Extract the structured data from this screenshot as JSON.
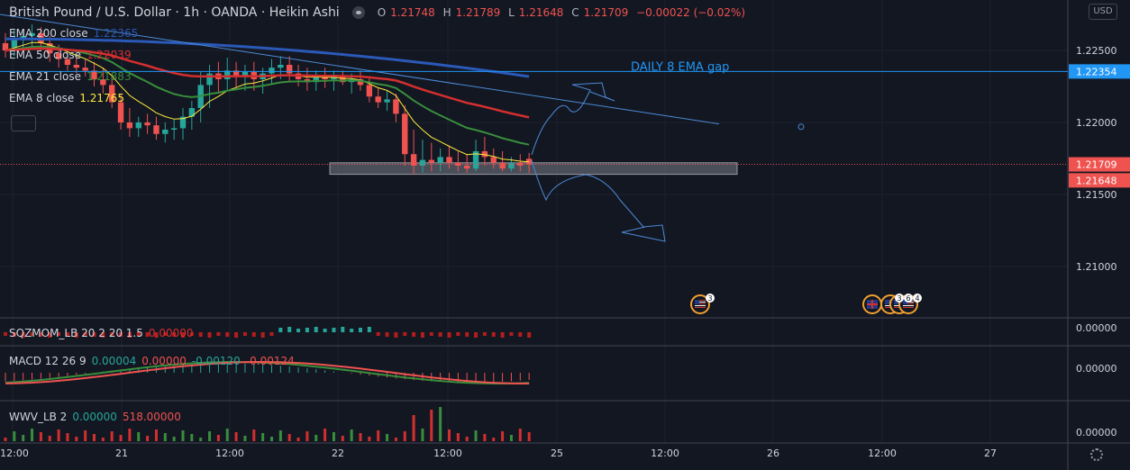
{
  "header": {
    "symbol": "British Pound / U.S. Dollar · 1h · OANDA · Heikin Ashi",
    "open_label": "O",
    "open": "1.21748",
    "high_label": "H",
    "high": "1.21789",
    "low_label": "L",
    "low": "1.21648",
    "close_label": "C",
    "close": "1.21709",
    "change": "−0.00022 (−0.02%)"
  },
  "currency_button": "USD",
  "indicators": [
    {
      "name": "EMA 200 close",
      "value": "1.22365",
      "color": "#2a59b8"
    },
    {
      "name": "EMA 50 close",
      "value": "1.22039",
      "color": "#d32f2f"
    },
    {
      "name": "EMA 21 close",
      "value": "1.21883",
      "color": "#388e3c"
    },
    {
      "name": "EMA 8 close",
      "value": "1.21765",
      "color": "#ffeb3b"
    }
  ],
  "annotation": "DAILY 8 EMA gap",
  "price_axis": {
    "ticks": [
      "1.22500",
      "1.22000",
      "1.21500",
      "1.21000"
    ],
    "tick_values": [
      1.225,
      1.22,
      1.215,
      1.21
    ],
    "badges": [
      {
        "text": "1.22354",
        "value": 1.22354,
        "color": "#2196f3"
      },
      {
        "text": "1.21709",
        "value": 1.21709,
        "color": "#ef5350"
      },
      {
        "text": "1.21648",
        "value": 1.21648,
        "color": "#ef5350"
      }
    ]
  },
  "time_axis": [
    "12:00",
    "21",
    "12:00",
    "22",
    "12:00",
    "25",
    "12:00",
    "26",
    "12:00",
    "27"
  ],
  "events": [
    {
      "flags": [
        "us"
      ],
      "count": "3"
    },
    {
      "flags": [
        "uk",
        "us",
        "us",
        "us"
      ],
      "count_labels": [
        "3",
        "6",
        "4"
      ]
    }
  ],
  "panes": [
    {
      "label_parts": [
        "SQZMOM_LB 20 2 20 1.5",
        "0.00000"
      ],
      "value_color": "#d32f2f",
      "axis": "0.00000"
    },
    {
      "label_parts": [
        "MACD 12 26 9",
        "0.00004",
        "0.00000",
        "-0.00120",
        "-0.00124"
      ],
      "value_colors": [
        "#26a69a",
        "#ef5350",
        "#26a69a",
        "#ef5350"
      ],
      "axis": "0.00000"
    },
    {
      "label_parts": [
        "WWV_LB 2",
        "0.00000",
        "518.00000"
      ],
      "value_colors": [
        "#26a69a",
        "#ef5350"
      ],
      "axis": "0.00000"
    }
  ],
  "colors": {
    "up": "#26a69a",
    "down": "#ef5350",
    "background": "#131722",
    "grid": "#1e222d"
  },
  "chart_data": {
    "type": "candlestick",
    "style": "Heikin Ashi",
    "interval": "1h",
    "ylim": [
      1.2065,
      1.2285
    ],
    "candles": [
      [
        1.2255,
        1.2262,
        1.2245,
        1.225
      ],
      [
        1.2252,
        1.2265,
        1.2246,
        1.2258
      ],
      [
        1.2258,
        1.2263,
        1.225,
        1.226
      ],
      [
        1.226,
        1.2268,
        1.2252,
        1.2262
      ],
      [
        1.2262,
        1.2266,
        1.225,
        1.2255
      ],
      [
        1.2255,
        1.226,
        1.2242,
        1.2248
      ],
      [
        1.2248,
        1.2254,
        1.2238,
        1.2244
      ],
      [
        1.2244,
        1.225,
        1.2236,
        1.224
      ],
      [
        1.224,
        1.2246,
        1.2234,
        1.2238
      ],
      [
        1.2238,
        1.2244,
        1.2232,
        1.2236
      ],
      [
        1.2236,
        1.2242,
        1.2225,
        1.223
      ],
      [
        1.223,
        1.2238,
        1.222,
        1.2226
      ],
      [
        1.2226,
        1.2232,
        1.221,
        1.2214
      ],
      [
        1.2214,
        1.222,
        1.2195,
        1.22
      ],
      [
        1.22,
        1.221,
        1.219,
        1.2196
      ],
      [
        1.2196,
        1.2204,
        1.219,
        1.22
      ],
      [
        1.22,
        1.2206,
        1.2192,
        1.2198
      ],
      [
        1.2198,
        1.2204,
        1.2188,
        1.2192
      ],
      [
        1.2192,
        1.22,
        1.2186,
        1.2195
      ],
      [
        1.2195,
        1.2202,
        1.2188,
        1.2196
      ],
      [
        1.2196,
        1.221,
        1.2188,
        1.2204
      ],
      [
        1.2204,
        1.2215,
        1.2195,
        1.221
      ],
      [
        1.221,
        1.2235,
        1.22,
        1.2226
      ],
      [
        1.2226,
        1.224,
        1.221,
        1.2234
      ],
      [
        1.2234,
        1.2242,
        1.222,
        1.223
      ],
      [
        1.223,
        1.2245,
        1.2222,
        1.2236
      ],
      [
        1.2236,
        1.2242,
        1.2224,
        1.2232
      ],
      [
        1.2232,
        1.224,
        1.2222,
        1.2235
      ],
      [
        1.2235,
        1.2242,
        1.2222,
        1.223
      ],
      [
        1.223,
        1.2238,
        1.222,
        1.2234
      ],
      [
        1.2234,
        1.2244,
        1.2226,
        1.2238
      ],
      [
        1.2238,
        1.2246,
        1.223,
        1.224
      ],
      [
        1.224,
        1.2246,
        1.2228,
        1.2234
      ],
      [
        1.2234,
        1.224,
        1.2225,
        1.223
      ],
      [
        1.223,
        1.2238,
        1.2222,
        1.2228
      ],
      [
        1.2228,
        1.2236,
        1.2222,
        1.2232
      ],
      [
        1.2232,
        1.2238,
        1.2224,
        1.223
      ],
      [
        1.223,
        1.2236,
        1.2222,
        1.2232
      ],
      [
        1.2232,
        1.2236,
        1.2226,
        1.2228
      ],
      [
        1.2228,
        1.2234,
        1.222,
        1.223
      ],
      [
        1.223,
        1.2236,
        1.2222,
        1.2226
      ],
      [
        1.2226,
        1.2232,
        1.2214,
        1.2218
      ],
      [
        1.2218,
        1.2224,
        1.221,
        1.2214
      ],
      [
        1.2214,
        1.2222,
        1.2208,
        1.2216
      ],
      [
        1.2216,
        1.222,
        1.22,
        1.2206
      ],
      [
        1.2206,
        1.2212,
        1.217,
        1.2178
      ],
      [
        1.2178,
        1.2195,
        1.2164,
        1.217
      ],
      [
        1.217,
        1.2188,
        1.2165,
        1.2174
      ],
      [
        1.2174,
        1.2186,
        1.2166,
        1.2172
      ],
      [
        1.2172,
        1.2182,
        1.2166,
        1.2176
      ],
      [
        1.2176,
        1.2184,
        1.2168,
        1.2172
      ],
      [
        1.2172,
        1.218,
        1.2166,
        1.217
      ],
      [
        1.217,
        1.2178,
        1.2165,
        1.2168
      ],
      [
        1.2168,
        1.2188,
        1.2166,
        1.218
      ],
      [
        1.218,
        1.219,
        1.217,
        1.2176
      ],
      [
        1.2176,
        1.2182,
        1.2168,
        1.2172
      ],
      [
        1.2172,
        1.218,
        1.2166,
        1.2168
      ],
      [
        1.2168,
        1.2176,
        1.2166,
        1.2172
      ],
      [
        1.2172,
        1.2178,
        1.2166,
        1.217
      ],
      [
        1.21748,
        1.21789,
        1.21648,
        1.21709
      ]
    ]
  }
}
